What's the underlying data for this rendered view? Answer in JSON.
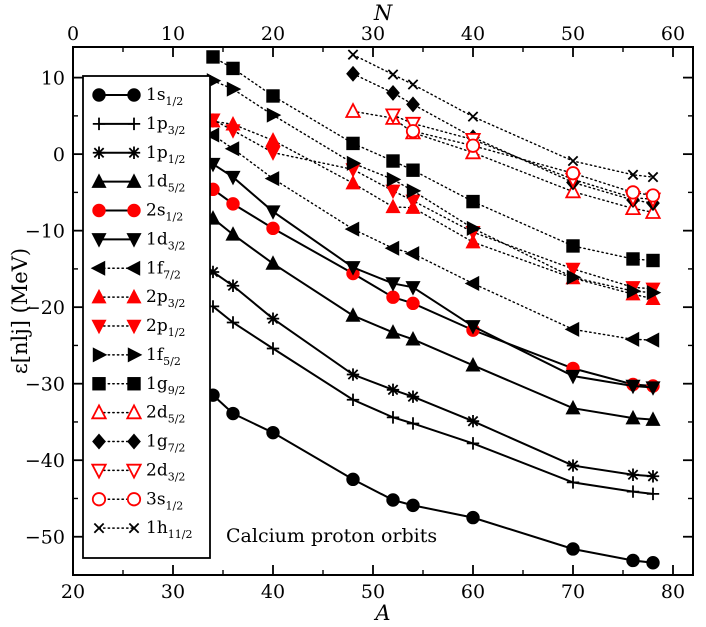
{
  "chart_data": {
    "type": "line",
    "annotation": "Calcium proton orbits",
    "xlabel": "A",
    "x2label": "N",
    "ylabel": "ε[nlj]   (MeV)",
    "xlim": [
      20,
      82
    ],
    "x2lim": [
      0,
      62
    ],
    "ylim": [
      -55,
      14
    ],
    "x_ticks": [
      20,
      30,
      40,
      50,
      60,
      70,
      80
    ],
    "x2_ticks": [
      0,
      10,
      20,
      30,
      40,
      50,
      60
    ],
    "y_ticks": [
      -50,
      -40,
      -30,
      -20,
      -10,
      0,
      10
    ],
    "legend_position": "left",
    "series": [
      {
        "name": "1s",
        "sub": "1/2",
        "color": "#000000",
        "marker": "circle",
        "line": "solid",
        "x": [
          34,
          36,
          40,
          48,
          52,
          54,
          60,
          70,
          76,
          78
        ],
        "y": [
          -31.5,
          -33.9,
          -36.4,
          -42.5,
          -45.2,
          -45.9,
          -47.5,
          -51.6,
          -53.1,
          -53.4
        ]
      },
      {
        "name": "1p",
        "sub": "3/2",
        "color": "#000000",
        "marker": "plus",
        "line": "solid",
        "x": [
          34,
          36,
          40,
          48,
          52,
          54,
          60,
          70,
          76,
          78
        ],
        "y": [
          -19.9,
          -22.0,
          -25.4,
          -32.1,
          -34.4,
          -35.2,
          -37.8,
          -42.9,
          -44.1,
          -44.4
        ]
      },
      {
        "name": "1p",
        "sub": "1/2",
        "color": "#000000",
        "marker": "star",
        "line": "solid",
        "x": [
          34,
          36,
          40,
          48,
          52,
          54,
          60,
          70,
          76,
          78
        ],
        "y": [
          -15.4,
          -17.2,
          -21.5,
          -28.8,
          -30.8,
          -31.7,
          -34.9,
          -40.7,
          -41.9,
          -42.1
        ]
      },
      {
        "name": "1d",
        "sub": "5/2",
        "color": "#000000",
        "marker": "triangle-up",
        "line": "solid",
        "x": [
          34,
          36,
          40,
          48,
          52,
          54,
          60,
          70,
          76,
          78
        ],
        "y": [
          -8.4,
          -10.5,
          -14.3,
          -21.1,
          -23.3,
          -24.2,
          -27.6,
          -33.2,
          -34.5,
          -34.7
        ]
      },
      {
        "name": "2s",
        "sub": "1/2",
        "color": "#ff0000",
        "marker": "circle",
        "line": "solid",
        "x": [
          34,
          36,
          40,
          48,
          52,
          54,
          60,
          70,
          76,
          78
        ],
        "y": [
          -4.6,
          -6.5,
          -9.7,
          -15.6,
          -18.7,
          -19.5,
          -23.0,
          -28.0,
          -30.1,
          -30.3
        ]
      },
      {
        "name": "1d",
        "sub": "3/2",
        "color": "#000000",
        "marker": "triangle-down",
        "line": "solid",
        "x": [
          34,
          36,
          40,
          48,
          52,
          54,
          60,
          70,
          76,
          78
        ],
        "y": [
          -1.3,
          -3.0,
          -7.5,
          -14.8,
          -16.9,
          -17.4,
          -22.5,
          -29.0,
          -30.3,
          -30.5
        ]
      },
      {
        "name": "1f",
        "sub": "7/2",
        "color": "#000000",
        "marker": "triangle-left",
        "line": "dotted",
        "x": [
          34,
          36,
          40,
          48,
          52,
          54,
          60,
          70,
          76,
          78
        ],
        "y": [
          2.5,
          0.7,
          -3.2,
          -9.8,
          -12.3,
          -13.0,
          -16.9,
          -22.9,
          -24.2,
          -24.3
        ]
      },
      {
        "name": "2p",
        "sub": "3/2",
        "color": "#ff0000",
        "marker": "triangle-up",
        "line": "dotted",
        "x": [
          34,
          36,
          40,
          48,
          52,
          54,
          60,
          70,
          76,
          78
        ],
        "y": [
          4.3,
          3.9,
          1.8,
          -3.8,
          -6.9,
          -7.0,
          -11.5,
          -16.2,
          -18.3,
          -18.9
        ]
      },
      {
        "name": "2p",
        "sub": "1/2",
        "color": "#ff0000",
        "marker": "triangle-down",
        "line": "dotted",
        "x": [
          34,
          36,
          40,
          48,
          52,
          54,
          60,
          70,
          76,
          78
        ],
        "y": [
          4.5,
          3.1,
          0.2,
          -2.0,
          -4.8,
          -6.1,
          -10.2,
          -15.0,
          -17.4,
          -17.6
        ]
      },
      {
        "name": "1f",
        "sub": "5/2",
        "color": "#000000",
        "marker": "triangle-right",
        "line": "dotted",
        "x": [
          34,
          36,
          40,
          48,
          52,
          54,
          60,
          70,
          76,
          78
        ],
        "y": [
          9.6,
          8.5,
          5.1,
          -1.2,
          -3.3,
          -4.8,
          -9.7,
          -16.1,
          -17.9,
          -18.1
        ]
      },
      {
        "name": "1g",
        "sub": "9/2",
        "color": "#000000",
        "marker": "square",
        "line": "dotted",
        "x": [
          34,
          36,
          40,
          48,
          52,
          54,
          60,
          70,
          76,
          78
        ],
        "y": [
          12.7,
          11.2,
          7.6,
          1.4,
          -0.9,
          -2.1,
          -6.2,
          -12.0,
          -13.7,
          -13.9
        ]
      },
      {
        "name": "2d",
        "sub": "5/2",
        "color": "#ff0000",
        "marker": "triangle-up-open",
        "line": "dotted",
        "x": [
          48,
          52,
          54,
          60,
          70,
          76,
          78
        ],
        "y": [
          5.6,
          4.7,
          2.8,
          0.2,
          -4.9,
          -7.1,
          -7.6
        ]
      },
      {
        "name": "1g",
        "sub": "7/2",
        "color": "#000000",
        "marker": "diamond",
        "line": "dotted",
        "x": [
          48,
          52,
          54,
          60,
          70,
          76,
          78
        ],
        "y": [
          10.5,
          8.0,
          6.5,
          2.2,
          -3.7,
          -6.0,
          -6.4
        ]
      },
      {
        "name": "2d",
        "sub": "3/2",
        "color": "#ff0000",
        "marker": "triangle-down-open",
        "line": "dotted",
        "x": [
          52,
          54,
          60,
          70,
          76,
          78
        ],
        "y": [
          5.1,
          4.0,
          1.9,
          -3.3,
          -5.7,
          -5.9
        ]
      },
      {
        "name": "3s",
        "sub": "1/2",
        "color": "#ff0000",
        "marker": "circle-open",
        "line": "dotted",
        "x": [
          54,
          60,
          70,
          76,
          78
        ],
        "y": [
          3.0,
          1.1,
          -2.5,
          -5.0,
          -5.4
        ]
      },
      {
        "name": "1h",
        "sub": "11/2",
        "color": "#000000",
        "marker": "x",
        "line": "dotted",
        "x": [
          48,
          52,
          54,
          60,
          70,
          76,
          78
        ],
        "y": [
          13.0,
          10.4,
          9.1,
          4.9,
          -0.9,
          -2.7,
          -3.0
        ]
      }
    ]
  }
}
